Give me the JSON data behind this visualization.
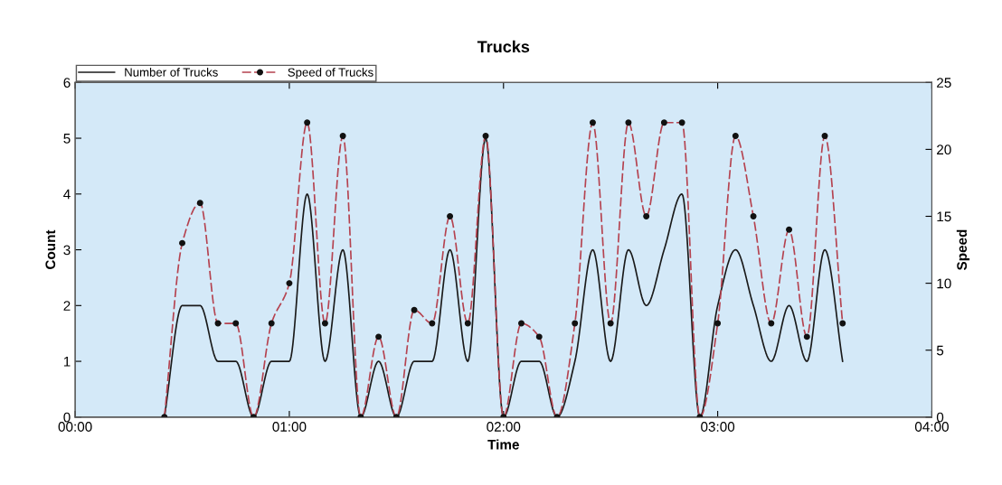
{
  "chart_data": {
    "type": "line",
    "title": "Trucks",
    "xlabel": "Time",
    "ylabel": "Count",
    "y2label": "Speed",
    "x": [
      0.4167,
      0.5,
      0.5833,
      0.6667,
      0.75,
      0.8333,
      0.9167,
      1.0,
      1.0833,
      1.1667,
      1.25,
      1.3333,
      1.4167,
      1.5,
      1.5833,
      1.6667,
      1.75,
      1.8333,
      1.9167,
      2.0,
      2.0833,
      2.1667,
      2.25,
      2.3333,
      2.4167,
      2.5,
      2.5833,
      2.6667,
      2.75,
      2.8333,
      2.9167,
      3.0,
      3.0833,
      3.1667,
      3.25,
      3.3333,
      3.4167,
      3.5,
      3.5833
    ],
    "series": [
      {
        "name": "Number of Trucks",
        "color": "#1a1a1a",
        "marker": "none",
        "line_style": "solid",
        "values": [
          0,
          2,
          2,
          1,
          1,
          0,
          1,
          1,
          4,
          1,
          3,
          0,
          1,
          0,
          1,
          1,
          3,
          1,
          5,
          0,
          1,
          1,
          0,
          1,
          3,
          1,
          3,
          2,
          3,
          4,
          0,
          2,
          3,
          2,
          1,
          2,
          1,
          3,
          1
        ]
      },
      {
        "name": "Speed of Trucks",
        "color": "#b5424f",
        "axis": "y2",
        "marker": "circle",
        "line_style": "dashed",
        "values": [
          0,
          13,
          16,
          7,
          7,
          0,
          7,
          10,
          22,
          7,
          21,
          0,
          6,
          0,
          8,
          7,
          15,
          7,
          21,
          0,
          7,
          6,
          0,
          7,
          22,
          7,
          22,
          15,
          22,
          22,
          0,
          7,
          21,
          15,
          7,
          14,
          6,
          21,
          7
        ]
      }
    ],
    "xlim": [
      0,
      4
    ],
    "xticks": [
      {
        "value": 0,
        "label": "00:00"
      },
      {
        "value": 1,
        "label": "01:00"
      },
      {
        "value": 2,
        "label": "02:00"
      },
      {
        "value": 3,
        "label": "03:00"
      },
      {
        "value": 4,
        "label": "04:00"
      }
    ],
    "ylim": [
      0,
      6
    ],
    "yticks": [
      0,
      1,
      2,
      3,
      4,
      5,
      6
    ],
    "y2lim": [
      0,
      25
    ],
    "y2ticks": [
      0,
      5,
      10,
      15,
      20,
      25
    ],
    "legend": "top left",
    "grid": false
  }
}
